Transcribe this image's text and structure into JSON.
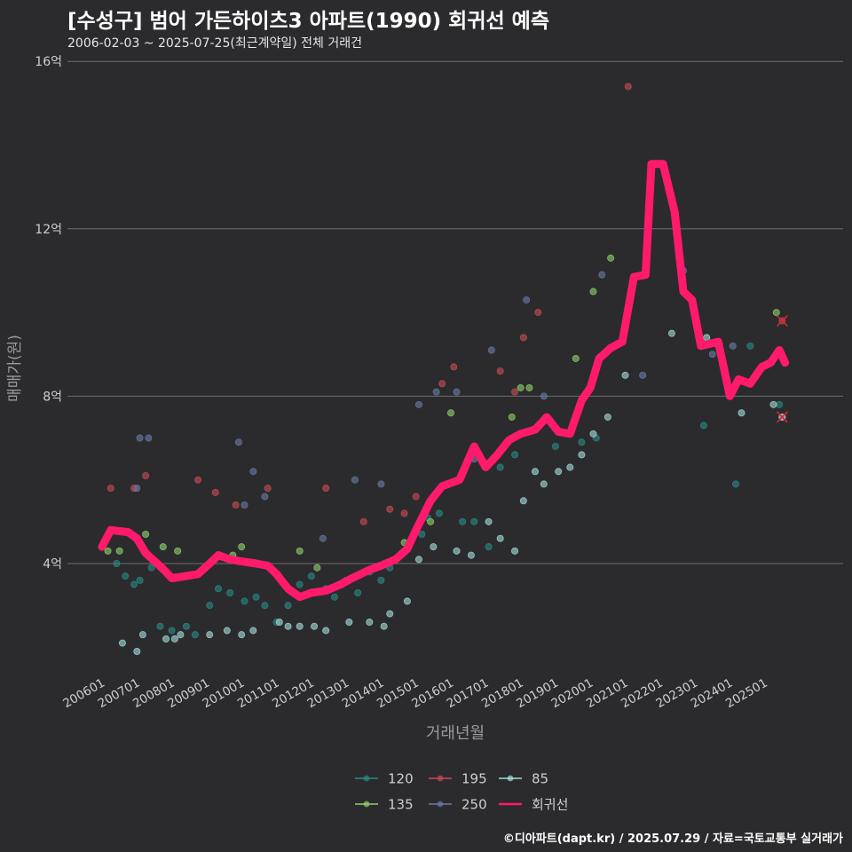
{
  "title": "[수성구] 범어 가든하이츠3 아파트(1990) 회귀선 예측",
  "subtitle": "2006-02-03 ~ 2025-07-25(최근계약일) 전체 거래건",
  "footer": "©디아파트(dapt.kr) / 2025.07.29 / 자료=국토교통부 실거래가",
  "colors": {
    "background": "#2b2b2d",
    "grid": "#6e6e70",
    "regression": "#ff1a6c",
    "120": "#2a8b86",
    "135": "#8fd16d",
    "195": "#c94c52",
    "250": "#6a7ba8",
    "85": "#a5ddda"
  },
  "chart_data": {
    "type": "scatter",
    "xlabel": "거래년월",
    "ylabel": "매매가(원)",
    "ylim": [
      1.2,
      16.5
    ],
    "x_tick_labels": [
      "200601",
      "200701",
      "200801",
      "200901",
      "201001",
      "201101",
      "201201",
      "201301",
      "201401",
      "201501",
      "201601",
      "201701",
      "201801",
      "201901",
      "202001",
      "202101",
      "202201",
      "202301",
      "202401",
      "202501"
    ],
    "y_tick_labels": [
      "4억",
      "8억",
      "12억",
      "16억"
    ],
    "y_ticks": [
      4,
      8,
      12,
      16
    ],
    "legend": [
      "120",
      "195",
      "85",
      "135",
      "250",
      "회귀선"
    ],
    "legend_position": "bottom",
    "series": [
      {
        "name": "120",
        "points": [
          [
            "2006-06",
            4.0
          ],
          [
            "2006-09",
            3.7
          ],
          [
            "2006-12",
            3.5
          ],
          [
            "2007-02",
            3.6
          ],
          [
            "2007-06",
            3.9
          ],
          [
            "2007-09",
            2.5
          ],
          [
            "2008-01",
            2.4
          ],
          [
            "2008-06",
            2.5
          ],
          [
            "2008-09",
            2.3
          ],
          [
            "2009-02",
            3.0
          ],
          [
            "2009-05",
            3.4
          ],
          [
            "2009-09",
            3.3
          ],
          [
            "2010-02",
            3.1
          ],
          [
            "2010-06",
            3.2
          ],
          [
            "2010-09",
            3.0
          ],
          [
            "2011-01",
            2.6
          ],
          [
            "2011-05",
            3.0
          ],
          [
            "2011-09",
            3.5
          ],
          [
            "2012-01",
            3.7
          ],
          [
            "2012-06",
            3.4
          ],
          [
            "2012-09",
            3.2
          ],
          [
            "2013-01",
            3.6
          ],
          [
            "2013-05",
            3.3
          ],
          [
            "2013-09",
            3.8
          ],
          [
            "2014-01",
            3.6
          ],
          [
            "2014-04",
            3.9
          ],
          [
            "2014-09",
            4.3
          ],
          [
            "2015-03",
            4.7
          ],
          [
            "2015-05",
            5.1
          ],
          [
            "2015-09",
            5.2
          ],
          [
            "2016-05",
            5.0
          ],
          [
            "2016-09",
            5.0
          ],
          [
            "2017-02",
            4.4
          ],
          [
            "2017-06",
            6.3
          ],
          [
            "2017-11",
            6.6
          ],
          [
            "2019-01",
            6.8
          ],
          [
            "2019-10",
            6.9
          ],
          [
            "2020-03",
            7.0
          ],
          [
            "2023-04",
            7.3
          ],
          [
            "2023-09",
            9.2
          ],
          [
            "2024-03",
            5.9
          ],
          [
            "2024-08",
            9.2
          ],
          [
            "2025-06",
            7.8
          ]
        ]
      },
      {
        "name": "135",
        "points": [
          [
            "2006-03",
            4.3
          ],
          [
            "2006-07",
            4.3
          ],
          [
            "2007-04",
            4.7
          ],
          [
            "2007-10",
            4.4
          ],
          [
            "2008-03",
            4.3
          ],
          [
            "2009-05",
            4.2
          ],
          [
            "2009-10",
            4.2
          ],
          [
            "2010-01",
            4.4
          ],
          [
            "2011-09",
            4.3
          ],
          [
            "2012-03",
            3.9
          ],
          [
            "2014-09",
            4.5
          ],
          [
            "2015-06",
            5.0
          ],
          [
            "2016-01",
            7.6
          ],
          [
            "2017-10",
            7.5
          ],
          [
            "2018-01",
            8.2
          ],
          [
            "2018-04",
            8.2
          ],
          [
            "2019-08",
            8.9
          ],
          [
            "2020-02",
            10.5
          ],
          [
            "2020-08",
            11.3
          ],
          [
            "2025-05",
            10.0
          ]
        ]
      },
      {
        "name": "195",
        "points": [
          [
            "2006-04",
            5.8
          ],
          [
            "2006-12",
            5.8
          ],
          [
            "2007-04",
            6.1
          ],
          [
            "2008-10",
            6.0
          ],
          [
            "2009-04",
            5.7
          ],
          [
            "2009-11",
            5.4
          ],
          [
            "2010-10",
            5.8
          ],
          [
            "2012-06",
            5.8
          ],
          [
            "2013-07",
            5.0
          ],
          [
            "2014-04",
            5.3
          ],
          [
            "2014-09",
            5.2
          ],
          [
            "2015-01",
            5.6
          ],
          [
            "2015-10",
            8.3
          ],
          [
            "2016-02",
            8.7
          ],
          [
            "2017-06",
            8.6
          ],
          [
            "2017-11",
            8.1
          ],
          [
            "2018-02",
            9.4
          ],
          [
            "2018-07",
            10.0
          ],
          [
            "2021-02",
            15.4
          ],
          [
            "2025-07",
            9.8
          ],
          [
            "2025-07",
            7.5
          ]
        ]
      },
      {
        "name": "250",
        "points": [
          [
            "2007-02",
            7.0
          ],
          [
            "2007-05",
            7.0
          ],
          [
            "2007-01",
            5.8
          ],
          [
            "2009-12",
            6.9
          ],
          [
            "2010-02",
            5.4
          ],
          [
            "2010-05",
            6.2
          ],
          [
            "2010-09",
            5.6
          ],
          [
            "2012-05",
            4.6
          ],
          [
            "2013-04",
            6.0
          ],
          [
            "2014-01",
            5.9
          ],
          [
            "2015-02",
            7.8
          ],
          [
            "2015-08",
            8.1
          ],
          [
            "2016-03",
            8.1
          ],
          [
            "2016-09",
            6.5
          ],
          [
            "2017-03",
            9.1
          ],
          [
            "2018-03",
            10.3
          ],
          [
            "2018-09",
            8.0
          ],
          [
            "2020-05",
            10.9
          ],
          [
            "2021-07",
            8.5
          ],
          [
            "2022-09",
            11.0
          ],
          [
            "2023-07",
            9.0
          ],
          [
            "2024-02",
            9.2
          ]
        ]
      },
      {
        "name": "85",
        "points": [
          [
            "2006-08",
            2.1
          ],
          [
            "2007-01",
            1.9
          ],
          [
            "2007-03",
            2.3
          ],
          [
            "2007-11",
            2.2
          ],
          [
            "2008-02",
            2.2
          ],
          [
            "2008-04",
            2.3
          ],
          [
            "2009-02",
            2.3
          ],
          [
            "2009-08",
            2.4
          ],
          [
            "2010-01",
            2.3
          ],
          [
            "2010-05",
            2.4
          ],
          [
            "2011-02",
            2.6
          ],
          [
            "2011-05",
            2.5
          ],
          [
            "2011-09",
            2.5
          ],
          [
            "2012-02",
            2.5
          ],
          [
            "2012-06",
            2.4
          ],
          [
            "2013-02",
            2.6
          ],
          [
            "2013-09",
            2.6
          ],
          [
            "2014-02",
            2.5
          ],
          [
            "2014-04",
            2.8
          ],
          [
            "2014-10",
            3.1
          ],
          [
            "2015-02",
            4.1
          ],
          [
            "2015-07",
            4.4
          ],
          [
            "2016-03",
            4.3
          ],
          [
            "2016-08",
            4.2
          ],
          [
            "2017-02",
            5.0
          ],
          [
            "2017-06",
            4.6
          ],
          [
            "2017-11",
            4.3
          ],
          [
            "2018-02",
            5.5
          ],
          [
            "2018-06",
            6.2
          ],
          [
            "2018-09",
            5.9
          ],
          [
            "2019-02",
            6.2
          ],
          [
            "2019-06",
            6.3
          ],
          [
            "2019-10",
            6.6
          ],
          [
            "2020-02",
            7.1
          ],
          [
            "2020-07",
            7.5
          ],
          [
            "2021-01",
            8.5
          ],
          [
            "2022-05",
            9.5
          ],
          [
            "2023-05",
            9.4
          ],
          [
            "2024-01",
            8.1
          ],
          [
            "2024-05",
            7.6
          ],
          [
            "2025-04",
            7.8
          ],
          [
            "2025-07",
            7.5
          ]
        ]
      },
      {
        "name": "회귀선",
        "line": [
          [
            "2006-01",
            4.4
          ],
          [
            "2006-04",
            4.8
          ],
          [
            "2006-10",
            4.75
          ],
          [
            "2007-01",
            4.6
          ],
          [
            "2007-04",
            4.25
          ],
          [
            "2007-08",
            4.0
          ],
          [
            "2007-11",
            3.8
          ],
          [
            "2008-01",
            3.65
          ],
          [
            "2008-06",
            3.7
          ],
          [
            "2008-10",
            3.75
          ],
          [
            "2009-02",
            4.0
          ],
          [
            "2009-05",
            4.2
          ],
          [
            "2009-09",
            4.1
          ],
          [
            "2010-01",
            4.05
          ],
          [
            "2010-06",
            4.0
          ],
          [
            "2010-10",
            3.95
          ],
          [
            "2011-01",
            3.75
          ],
          [
            "2011-05",
            3.4
          ],
          [
            "2011-09",
            3.2
          ],
          [
            "2012-01",
            3.3
          ],
          [
            "2012-06",
            3.35
          ],
          [
            "2012-11",
            3.5
          ],
          [
            "2013-03",
            3.65
          ],
          [
            "2013-09",
            3.85
          ],
          [
            "2014-01",
            3.95
          ],
          [
            "2014-06",
            4.1
          ],
          [
            "2014-10",
            4.35
          ],
          [
            "2015-01",
            4.8
          ],
          [
            "2015-06",
            5.5
          ],
          [
            "2015-10",
            5.85
          ],
          [
            "2016-04",
            6.0
          ],
          [
            "2016-09",
            6.8
          ],
          [
            "2017-01",
            6.3
          ],
          [
            "2017-05",
            6.6
          ],
          [
            "2017-09",
            6.95
          ],
          [
            "2018-01",
            7.1
          ],
          [
            "2018-06",
            7.2
          ],
          [
            "2018-10",
            7.5
          ],
          [
            "2019-02",
            7.15
          ],
          [
            "2019-06",
            7.1
          ],
          [
            "2019-10",
            7.9
          ],
          [
            "2020-01",
            8.2
          ],
          [
            "2020-04",
            8.9
          ],
          [
            "2020-08",
            9.15
          ],
          [
            "2020-12",
            9.3
          ],
          [
            "2021-04",
            10.85
          ],
          [
            "2021-08",
            10.9
          ],
          [
            "2021-10",
            13.55
          ],
          [
            "2022-02",
            13.55
          ],
          [
            "2022-06",
            12.4
          ],
          [
            "2022-09",
            10.5
          ],
          [
            "2022-12",
            10.3
          ],
          [
            "2023-03",
            9.2
          ],
          [
            "2023-09",
            9.3
          ],
          [
            "2024-01",
            8.0
          ],
          [
            "2024-04",
            8.4
          ],
          [
            "2024-08",
            8.3
          ],
          [
            "2024-12",
            8.7
          ],
          [
            "2025-03",
            8.8
          ],
          [
            "2025-06",
            9.1
          ],
          [
            "2025-08",
            8.8
          ]
        ]
      }
    ]
  }
}
